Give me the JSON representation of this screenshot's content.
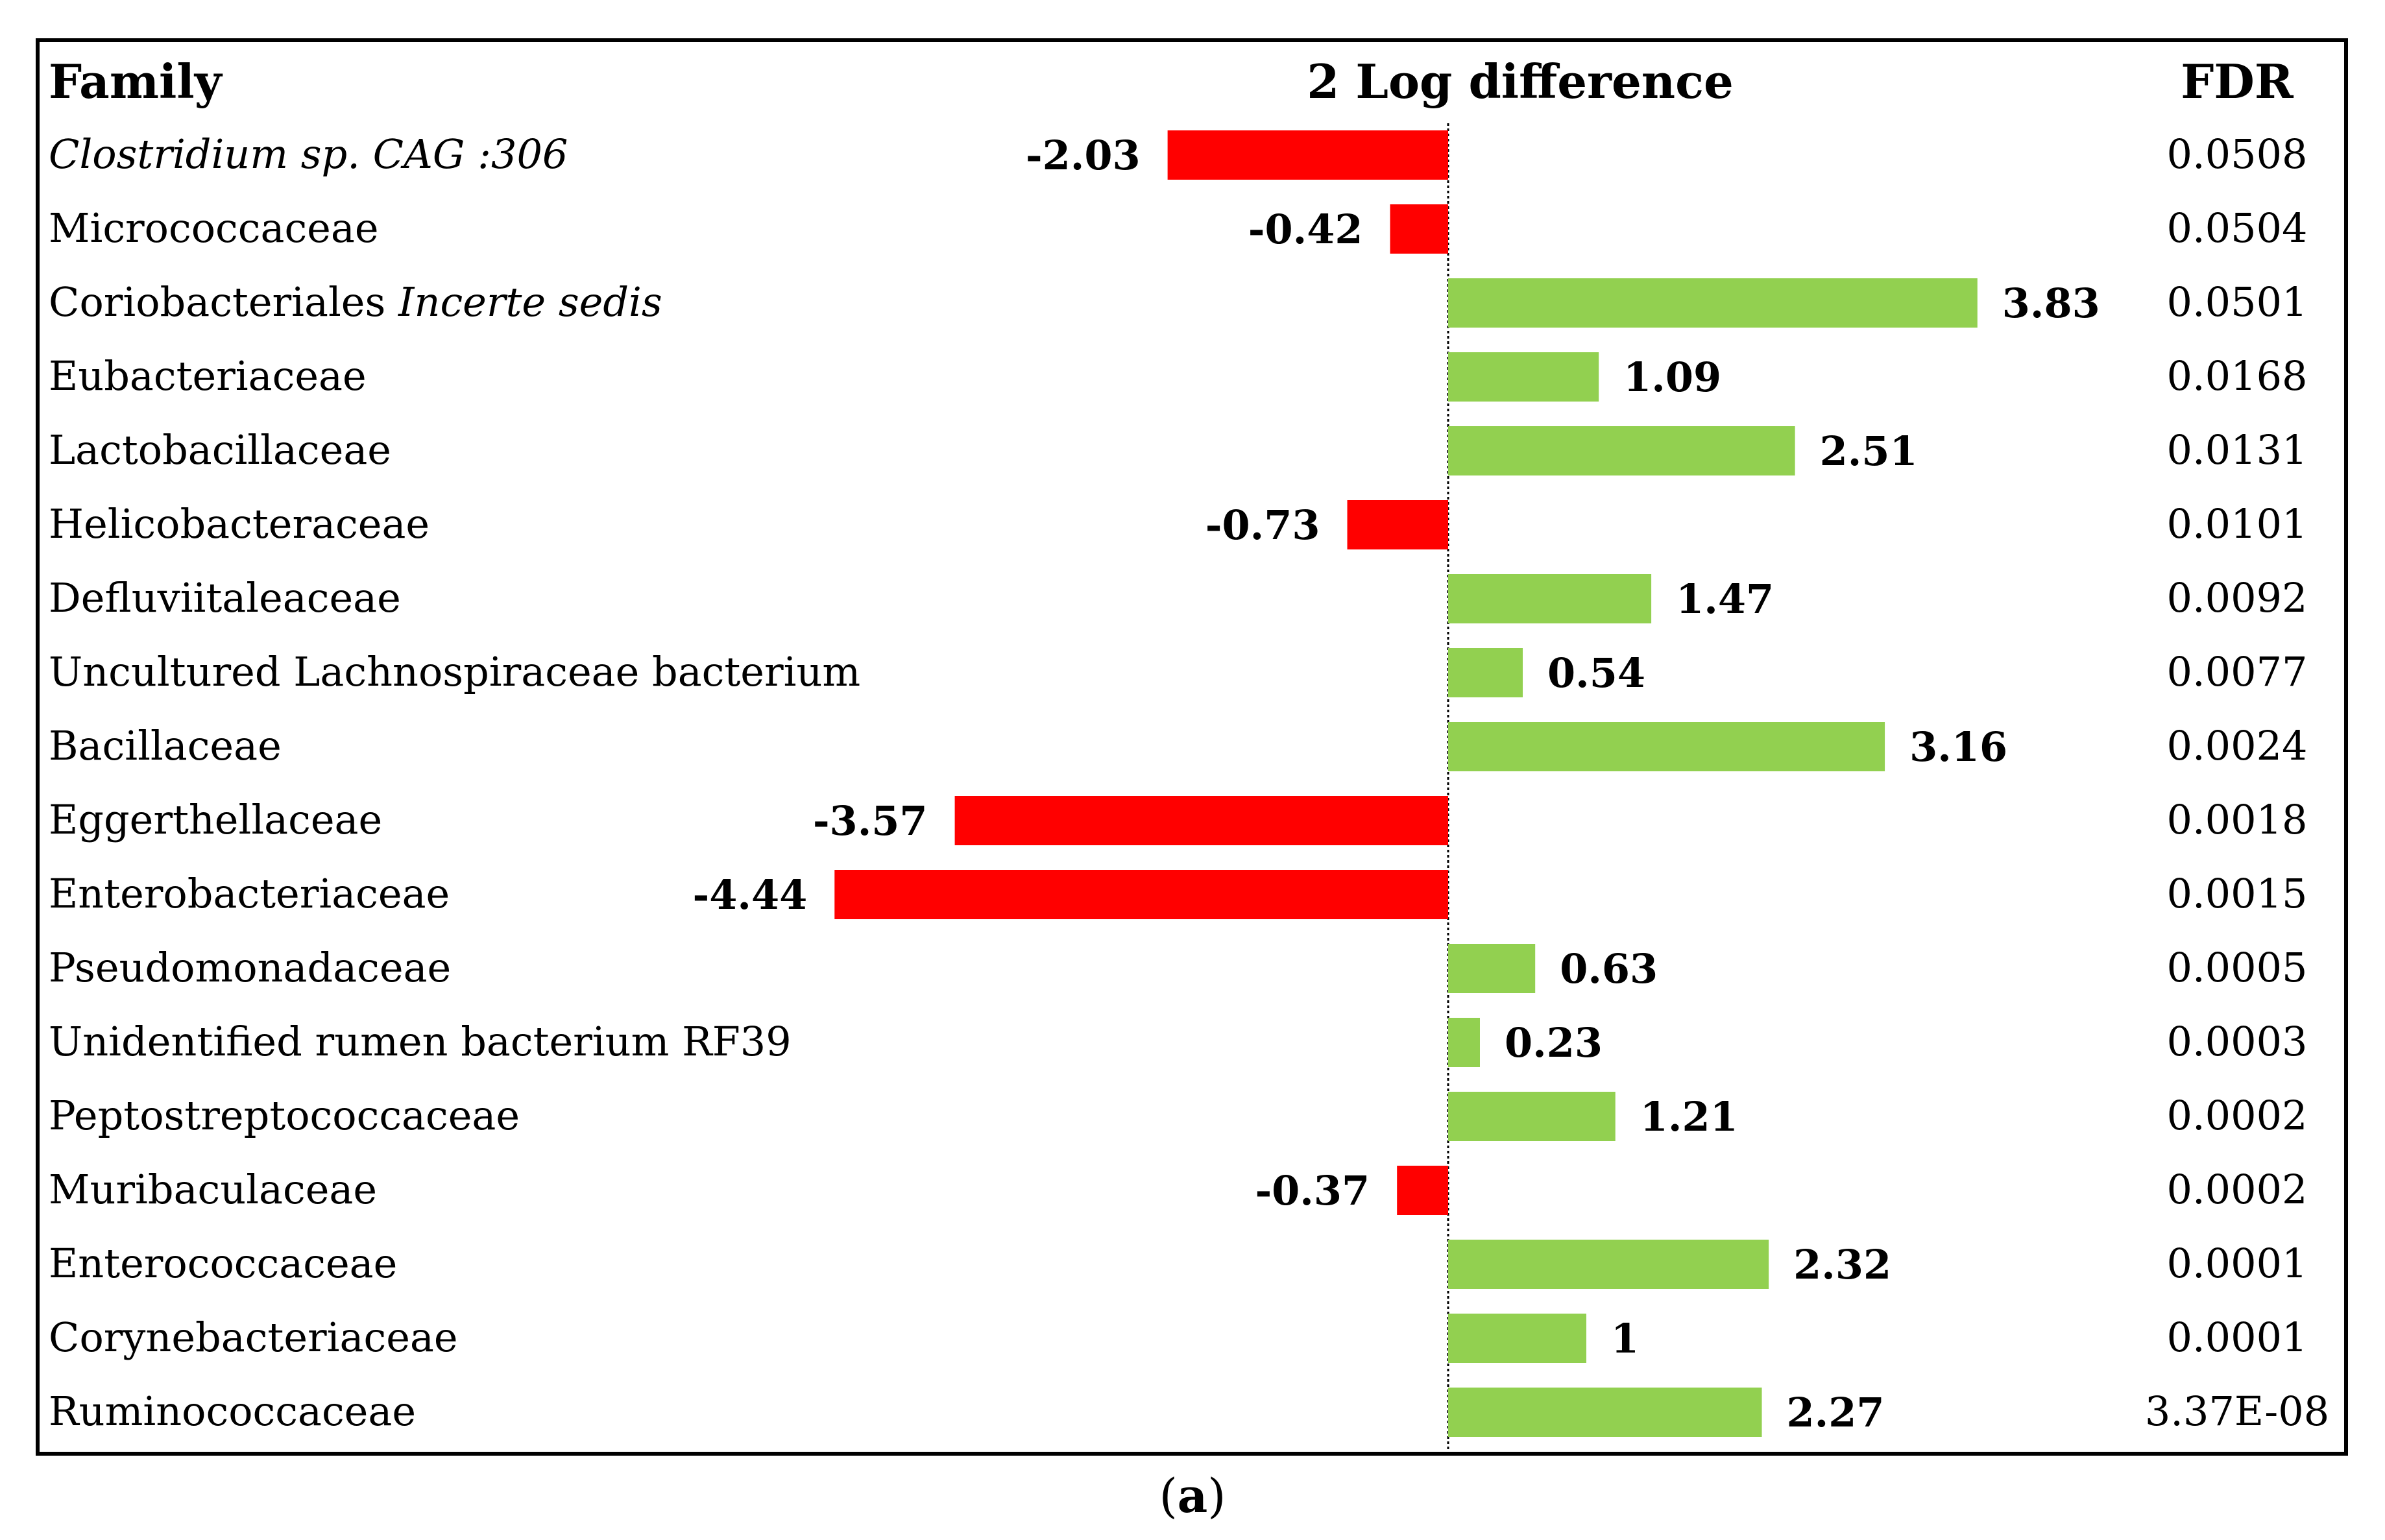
{
  "headers": {
    "family": "Family",
    "difference": "2 Log difference",
    "fdr": "FDR"
  },
  "caption": {
    "open": "(",
    "letter": "a",
    "close": ")"
  },
  "colors": {
    "negative": "#ff0000",
    "positive": "#92d050",
    "axis": "#000000"
  },
  "chart_data": {
    "type": "bar",
    "orientation": "horizontal",
    "title": "2 Log difference",
    "xlim": [
      -4.5,
      4.5
    ],
    "categories": [
      {
        "name": "Clostridium sp. CAG :306",
        "name_plain": "",
        "name_italic": "Clostridium sp. CAG :306"
      },
      {
        "name": "Micrococcaceae",
        "name_plain": "Micrococcaceae",
        "name_italic": ""
      },
      {
        "name": "Coriobacteriales Incerte sedis",
        "name_plain": "Coriobacteriales ",
        "name_italic": "Incerte sedis"
      },
      {
        "name": "Eubacteriaceae",
        "name_plain": "Eubacteriaceae",
        "name_italic": ""
      },
      {
        "name": "Lactobacillaceae",
        "name_plain": "Lactobacillaceae",
        "name_italic": ""
      },
      {
        "name": "Helicobacteraceae",
        "name_plain": "Helicobacteraceae",
        "name_italic": ""
      },
      {
        "name": "Defluviitaleaceae",
        "name_plain": "Defluviitaleaceae",
        "name_italic": ""
      },
      {
        "name": "Uncultured Lachnospiraceae bacterium",
        "name_plain": "Uncultured Lachnospiraceae bacterium",
        "name_italic": ""
      },
      {
        "name": "Bacillaceae",
        "name_plain": "Bacillaceae",
        "name_italic": ""
      },
      {
        "name": "Eggerthellaceae",
        "name_plain": "Eggerthellaceae",
        "name_italic": ""
      },
      {
        "name": "Enterobacteriaceae",
        "name_plain": "Enterobacteriaceae",
        "name_italic": ""
      },
      {
        "name": "Pseudomonadaceae",
        "name_plain": "Pseudomonadaceae",
        "name_italic": ""
      },
      {
        "name": "Unidentified rumen bacterium RF39",
        "name_plain": "Unidentified rumen bacterium RF39",
        "name_italic": ""
      },
      {
        "name": "Peptostreptococcaceae",
        "name_plain": "Peptostreptococcaceae",
        "name_italic": ""
      },
      {
        "name": "Muribaculaceae",
        "name_plain": "Muribaculaceae",
        "name_italic": ""
      },
      {
        "name": "Enterococcaceae",
        "name_plain": "Enterococcaceae",
        "name_italic": ""
      },
      {
        "name": "Corynebacteriaceae",
        "name_plain": "Corynebacteriaceae",
        "name_italic": ""
      },
      {
        "name": "Ruminococcaceae",
        "name_plain": "Ruminococcaceae",
        "name_italic": ""
      }
    ],
    "values": [
      -2.03,
      -0.42,
      3.83,
      1.09,
      2.51,
      -0.73,
      1.47,
      0.54,
      3.16,
      -3.57,
      -4.44,
      0.63,
      0.23,
      1.21,
      -0.37,
      2.32,
      1,
      2.27
    ],
    "value_labels": [
      "-2.03",
      "-0.42",
      "3.83",
      "1.09",
      "2.51",
      "-0.73",
      "1.47",
      "0.54",
      "3.16",
      "-3.57",
      "-4.44",
      "0.63",
      "0.23",
      "1.21",
      "-0.37",
      "2.32",
      "1",
      "2.27"
    ],
    "fdr": [
      "0.0508",
      "0.0504",
      "0.0501",
      "0.0168",
      "0.0131",
      "0.0101",
      "0.0092",
      "0.0077",
      "0.0024",
      "0.0018",
      "0.0015",
      "0.0005",
      "0.0003",
      "0.0002",
      "0.0002",
      "0.0001",
      "0.0001",
      "3.37E-08"
    ]
  }
}
